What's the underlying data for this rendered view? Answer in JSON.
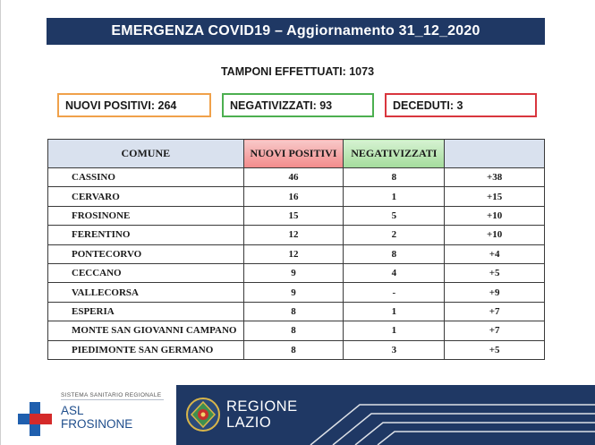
{
  "title": "EMERGENZA COVID19 – Aggiornamento 31_12_2020",
  "tamponi": {
    "label": "TAMPONI EFFETTUATI:",
    "value": "1073"
  },
  "stats": {
    "nuovi_positivi": {
      "label": "NUOVI POSITIVI:",
      "value": "264"
    },
    "negativizzati": {
      "label": "NEGATIVIZZATI:",
      "value": "93"
    },
    "deceduti": {
      "label": "DECEDUTI:",
      "value": "3"
    }
  },
  "table": {
    "headers": {
      "comune": "COMUNE",
      "nuovi_positivi": "NUOVI POSITIVI",
      "negativizzati": "NEGATIVIZZATI",
      "diff": ""
    },
    "rows": [
      {
        "comune": "CASSINO",
        "positivi": "46",
        "negativizzati": "8",
        "diff": "+38"
      },
      {
        "comune": "CERVARO",
        "positivi": "16",
        "negativizzati": "1",
        "diff": "+15"
      },
      {
        "comune": "FROSINONE",
        "positivi": "15",
        "negativizzati": "5",
        "diff": "+10"
      },
      {
        "comune": "FERENTINO",
        "positivi": "12",
        "negativizzati": "2",
        "diff": "+10"
      },
      {
        "comune": "PONTECORVO",
        "positivi": "12",
        "negativizzati": "8",
        "diff": "+4"
      },
      {
        "comune": "CECCANO",
        "positivi": "9",
        "negativizzati": "4",
        "diff": "+5"
      },
      {
        "comune": "VALLECORSA",
        "positivi": "9",
        "negativizzati": "-",
        "diff": "+9"
      },
      {
        "comune": "ESPERIA",
        "positivi": "8",
        "negativizzati": "1",
        "diff": "+7"
      },
      {
        "comune": "MONTE SAN GIOVANNI CAMPANO",
        "positivi": "8",
        "negativizzati": "1",
        "diff": "+7"
      },
      {
        "comune": "PIEDIMONTE SAN GERMANO",
        "positivi": "8",
        "negativizzati": "3",
        "diff": "+5"
      }
    ]
  },
  "footer": {
    "asl": {
      "system": "SISTEMA SANITARIO REGIONALE",
      "line1": "ASL",
      "line2": "FROSINONE",
      "icon": "red-blue-cross-icon"
    },
    "regione": {
      "line1": "REGIONE",
      "line2": "LAZIO",
      "icon": "regione-lazio-emblem-icon"
    }
  },
  "colors": {
    "title_bg": "#1f3864",
    "positivi_border": "#f0a14a",
    "negativizzati_border": "#4caf50",
    "deceduti_border": "#d9363e",
    "header_positivi": "#f28b8b",
    "header_negativizzati": "#a4dc9c",
    "header_default": "#d9e1ee"
  }
}
